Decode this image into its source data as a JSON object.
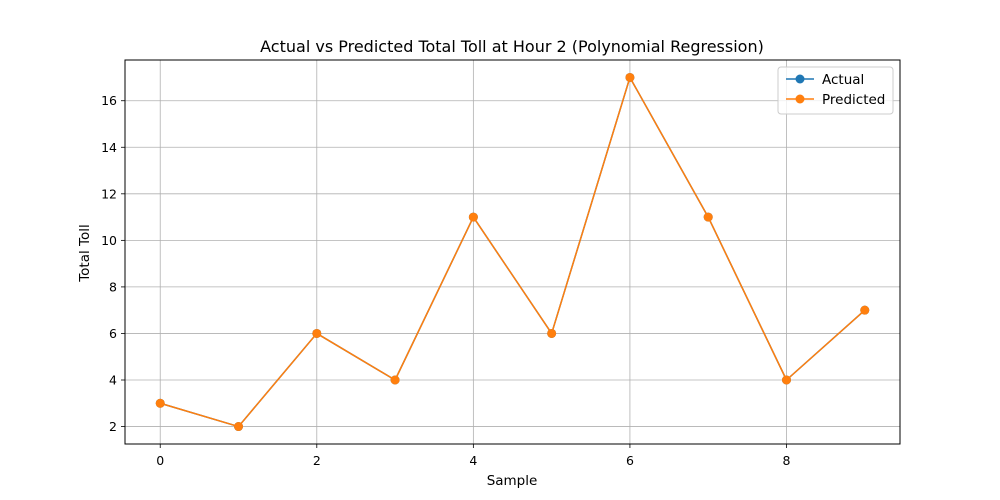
{
  "chart_data": {
    "type": "line",
    "title": "Actual vs Predicted Total Toll at Hour 2 (Polynomial Regression)",
    "xlabel": "Sample",
    "ylabel": "Total Toll",
    "x": [
      0,
      1,
      2,
      3,
      4,
      5,
      6,
      7,
      8,
      9
    ],
    "xlim": [
      -0.45,
      9.45
    ],
    "ylim": [
      1.25,
      17.75
    ],
    "xticks": [
      0,
      2,
      4,
      6,
      8
    ],
    "yticks": [
      2,
      4,
      6,
      8,
      10,
      12,
      14,
      16
    ],
    "grid": true,
    "legend_position": "top-right",
    "series": [
      {
        "name": "Actual",
        "color": "#1f77b4",
        "marker": "circle",
        "values": [
          3,
          2,
          6,
          4,
          11,
          6,
          17,
          11,
          4,
          7
        ]
      },
      {
        "name": "Predicted",
        "color": "#ff7f0e",
        "marker": "circle",
        "values": [
          3,
          2,
          6,
          4,
          11,
          6,
          17,
          11,
          4,
          7
        ]
      }
    ]
  }
}
